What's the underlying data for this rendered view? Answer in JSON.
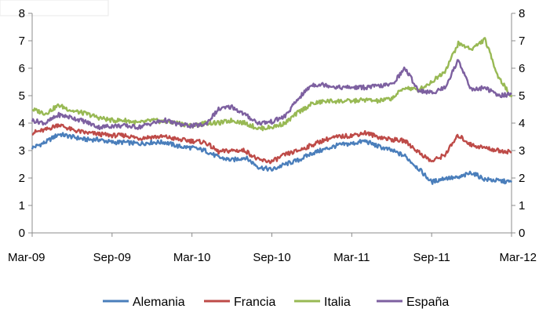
{
  "chart_data": {
    "type": "line",
    "title": "",
    "xlabel": "",
    "ylabel": "",
    "ylim": [
      0,
      8
    ],
    "yticks": [
      0,
      1,
      2,
      3,
      4,
      5,
      6,
      7,
      8
    ],
    "secondary_yticks": [
      0,
      1,
      2,
      3,
      4,
      5,
      6,
      7,
      8
    ],
    "x_tick_labels": [
      "Mar-09",
      "Sep-09",
      "Mar-10",
      "Sep-10",
      "Mar-11",
      "Sep-11",
      "Mar-12"
    ],
    "grid": false,
    "legend_position": "bottom",
    "x": [
      "Mar-09",
      "Apr-09",
      "May-09",
      "Jun-09",
      "Jul-09",
      "Aug-09",
      "Sep-09",
      "Oct-09",
      "Nov-09",
      "Dec-09",
      "Jan-10",
      "Feb-10",
      "Mar-10",
      "Apr-10",
      "May-10",
      "Jun-10",
      "Jul-10",
      "Aug-10",
      "Sep-10",
      "Oct-10",
      "Nov-10",
      "Dec-10",
      "Jan-11",
      "Feb-11",
      "Mar-11",
      "Apr-11",
      "May-11",
      "Jun-11",
      "Jul-11",
      "Aug-11",
      "Sep-11",
      "Oct-11",
      "Nov-11",
      "Dec-11",
      "Jan-12",
      "Feb-12",
      "Mar-12"
    ],
    "series": [
      {
        "name": "Alemania",
        "color": "#4a7ebb",
        "values": [
          3.1,
          3.3,
          3.6,
          3.5,
          3.4,
          3.4,
          3.3,
          3.3,
          3.25,
          3.3,
          3.3,
          3.15,
          3.1,
          3.0,
          2.75,
          2.65,
          2.75,
          2.4,
          2.3,
          2.5,
          2.65,
          2.9,
          3.05,
          3.2,
          3.25,
          3.35,
          3.15,
          3.0,
          2.8,
          2.35,
          1.85,
          2.0,
          2.0,
          2.2,
          1.95,
          1.9,
          1.85
        ]
      },
      {
        "name": "Francia",
        "color": "#be4b48",
        "values": [
          3.65,
          3.75,
          3.95,
          3.75,
          3.65,
          3.6,
          3.55,
          3.55,
          3.45,
          3.5,
          3.5,
          3.4,
          3.35,
          3.3,
          2.95,
          3.0,
          3.0,
          2.65,
          2.6,
          2.85,
          3.0,
          3.2,
          3.4,
          3.5,
          3.55,
          3.65,
          3.5,
          3.4,
          3.35,
          2.95,
          2.6,
          2.85,
          3.55,
          3.2,
          3.1,
          3.0,
          2.95
        ]
      },
      {
        "name": "Italia",
        "color": "#98b954",
        "values": [
          4.5,
          4.35,
          4.65,
          4.45,
          4.35,
          4.2,
          4.1,
          4.1,
          4.0,
          4.1,
          4.05,
          4.0,
          3.9,
          4.0,
          4.0,
          4.1,
          4.0,
          3.8,
          3.85,
          4.0,
          4.4,
          4.7,
          4.8,
          4.8,
          4.8,
          4.85,
          4.8,
          4.9,
          5.3,
          5.2,
          5.5,
          5.9,
          6.9,
          6.7,
          7.05,
          5.7,
          4.95
        ]
      },
      {
        "name": "España",
        "color": "#7d60a0",
        "values": [
          4.1,
          4.0,
          4.3,
          4.2,
          4.05,
          3.85,
          3.9,
          3.9,
          3.85,
          4.0,
          4.1,
          3.95,
          3.9,
          3.95,
          4.5,
          4.6,
          4.3,
          4.0,
          4.05,
          4.25,
          4.9,
          5.4,
          5.4,
          5.3,
          5.3,
          5.3,
          5.35,
          5.4,
          6.0,
          5.2,
          5.1,
          5.3,
          6.3,
          5.2,
          5.3,
          5.0,
          5.05
        ]
      }
    ]
  }
}
